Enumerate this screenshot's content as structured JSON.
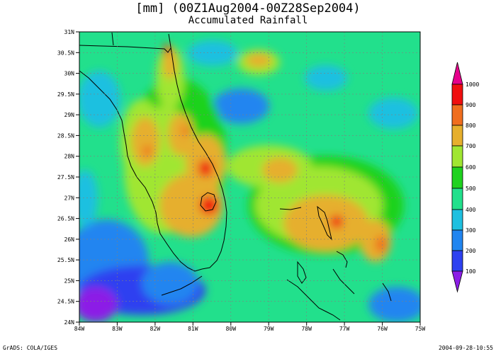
{
  "title": "[mm] (00Z1Aug2004-00Z28Sep2004)",
  "subtitle": "Accumulated Rainfall",
  "footer": {
    "credit": "GrADS: COLA/IGES",
    "timestamp": "2004-09-28-10:55"
  },
  "map": {
    "lon_labels": [
      "84W",
      "83W",
      "82W",
      "81W",
      "80W",
      "79W",
      "78W",
      "77W",
      "76W",
      "75W"
    ],
    "lat_labels": [
      "24N",
      "24.5N",
      "25N",
      "25.5N",
      "26N",
      "26.5N",
      "27N",
      "27.5N",
      "28N",
      "28.5N",
      "29N",
      "29.5N",
      "30N",
      "30.5N",
      "31N"
    ],
    "lon_range": [
      -84,
      -75
    ],
    "lat_range": [
      24,
      31
    ],
    "grid": "dashed",
    "variable": "accumulated rainfall",
    "unit": "mm"
  },
  "colorbar": {
    "labels": [
      "100",
      "200",
      "300",
      "400",
      "500",
      "600",
      "700",
      "800",
      "900",
      "1000"
    ],
    "colors": [
      "#8c1ee6",
      "#2d41f0",
      "#2185f0",
      "#1fc0e0",
      "#22e08c",
      "#1fd21f",
      "#a0e632",
      "#e6af2d",
      "#f06e1e",
      "#f00f0f",
      "#e6008c"
    ]
  }
}
